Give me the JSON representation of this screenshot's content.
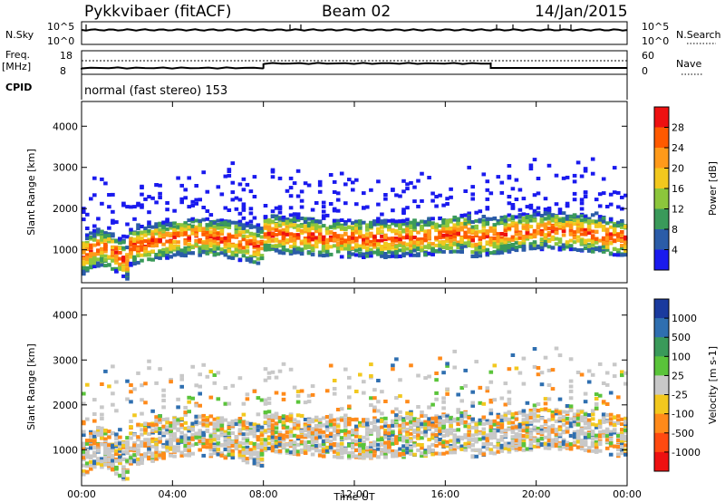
{
  "header": {
    "station": "Pykkvibaer (fitACF)",
    "beam": "Beam 02",
    "date": "14/Jan/2015"
  },
  "top_panels": {
    "nsky_label": "N.Sky",
    "nsky_ticks": [
      "10^5",
      "10^0"
    ],
    "nsearch_label": "N.Search",
    "nsearch_ticks": [
      "10^5",
      "10^0"
    ],
    "freq_label": "Freq.",
    "freq_unit": "[MHz]",
    "freq_ticks": [
      "18",
      "8"
    ],
    "nave_label": "Nave",
    "nave_ticks": [
      "60",
      "0"
    ],
    "cpid_label": "CPID",
    "cpid_text": "normal (fast stereo) 153"
  },
  "chart_data": [
    {
      "type": "heatmap",
      "name": "power-panel",
      "xlabel": "",
      "ylabel": "Slant Range [km]",
      "x_range_hours": [
        0,
        24
      ],
      "ylim": [
        200,
        4600
      ],
      "yticks": [
        1000,
        2000,
        3000,
        4000
      ],
      "colorbar": {
        "label": "Power [dB]",
        "ticks": [
          "28",
          "24",
          "20",
          "16",
          "12",
          "8",
          "4"
        ],
        "colors": [
          "#ee1111",
          "#ff5a00",
          "#ff9a1a",
          "#f2c81e",
          "#8cc63c",
          "#3a9a5a",
          "#2b5ca8",
          "#1a1aee"
        ]
      }
    },
    {
      "type": "heatmap",
      "name": "velocity-panel",
      "xlabel": "Time UT",
      "ylabel": "Slant Range [km]",
      "x_range_hours": [
        0,
        24
      ],
      "xticks": [
        "00:00",
        "04:00",
        "08:00",
        "12:00",
        "16:00",
        "20:00",
        "00:00"
      ],
      "ylim": [
        200,
        4600
      ],
      "yticks": [
        1000,
        2000,
        3000,
        4000
      ],
      "colorbar": {
        "label": "Velocity [m s-1]",
        "ticks": [
          "1000",
          "500",
          "100",
          "25",
          "-25",
          "-100",
          "-500",
          "-1000"
        ],
        "colors": [
          "#1a3a9e",
          "#2f6fb0",
          "#3a9a5a",
          "#5ac43a",
          "#c8c8c8",
          "#f2c81e",
          "#ff8a1a",
          "#ff4a10",
          "#ee1111"
        ]
      }
    }
  ]
}
